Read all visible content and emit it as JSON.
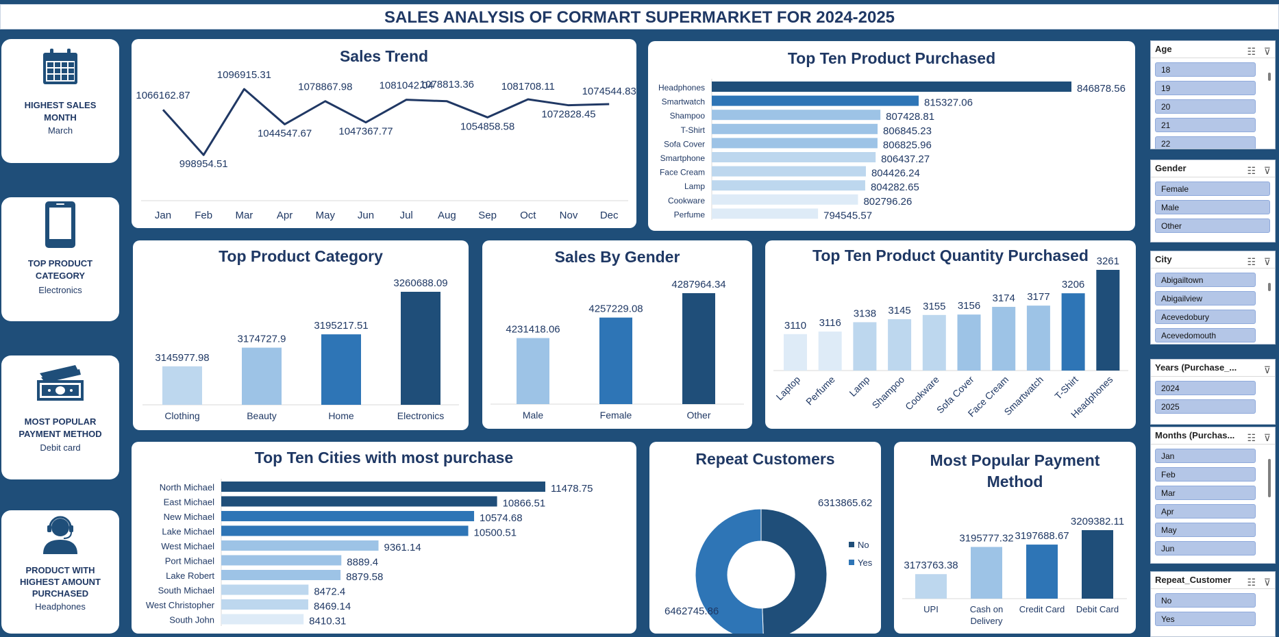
{
  "title": "SALES ANALYSIS OF CORMART SUPERMARKET FOR 2024-2025",
  "colors": {
    "background": "#1f4e79",
    "dark": "#1f4e79",
    "mid": "#2e75b6",
    "light": "#9dc3e6",
    "lighter": "#bdd7ee",
    "lightest": "#deebf7",
    "slicer_item": "#b4c6e7"
  },
  "kpis": [
    {
      "icon": "calendar-icon",
      "label_line1": "HIGHEST SALES",
      "label_line2": "MONTH",
      "value": "March"
    },
    {
      "icon": "smartphone-icon",
      "label_line1": "TOP PRODUCT",
      "label_line2": "CATEGORY",
      "value": "Electronics"
    },
    {
      "icon": "cash-icon",
      "label_line1": "MOST POPULAR",
      "label_line2": "PAYMENT METHOD",
      "value": "Debit card"
    },
    {
      "icon": "support-agent-icon",
      "label_line1": "PRODUCT WITH",
      "label_line2": "HIGHEST AMOUNT",
      "label_line3": "PURCHASED",
      "value": "Headphones"
    }
  ],
  "chart_data": [
    {
      "id": "sales_trend",
      "type": "line",
      "title": "Sales Trend",
      "categories": [
        "Jan",
        "Feb",
        "Mar",
        "Apr",
        "May",
        "Jun",
        "Jul",
        "Aug",
        "Sep",
        "Oct",
        "Nov",
        "Dec"
      ],
      "values": [
        1066162.87,
        998954.51,
        1096915.31,
        1044547.67,
        1078867.98,
        1047367.77,
        1081042.04,
        1078813.36,
        1054858.58,
        1081708.11,
        1072828.45,
        1074544.83
      ],
      "labels": [
        "1066162.87",
        "998954.51",
        "1096915.31",
        "1044547.67",
        "1078867.98",
        "1047367.77",
        "1081042.04",
        "1078813.36",
        "1054858.58",
        "1081708.11",
        "1072828.45",
        "1074544.83"
      ]
    },
    {
      "id": "top_products",
      "type": "bar",
      "orientation": "horizontal",
      "title": "Top Ten Product  Purchased",
      "categories": [
        "Headphones",
        "Smartwatch",
        "Shampoo",
        "T-Shirt",
        "Sofa Cover",
        "Smartphone",
        "Face Cream",
        "Lamp",
        "Cookware",
        "Perfume"
      ],
      "values": [
        846878.56,
        815327.06,
        807428.81,
        806845.23,
        806825.96,
        806437.27,
        804426.24,
        804282.65,
        802796.26,
        794545.57
      ],
      "labels": [
        "846878.56",
        "815327.06",
        "807428.81",
        "806845.23",
        "806825.96",
        "806437.27",
        "804426.24",
        "804282.65",
        "802796.26",
        "794545.57"
      ]
    },
    {
      "id": "top_category",
      "type": "bar",
      "title": "Top Product Category",
      "categories": [
        "Clothing",
        "Beauty",
        "Home",
        "Electronics"
      ],
      "values": [
        3145977.98,
        3174727.9,
        3195217.51,
        3260688.09
      ],
      "labels": [
        "3145977.98",
        "3174727.9",
        "3195217.51",
        "3260688.09"
      ]
    },
    {
      "id": "sales_gender",
      "type": "bar",
      "title": "Sales By Gender",
      "categories": [
        "Male",
        "Female",
        "Other"
      ],
      "values": [
        4231418.06,
        4257229.08,
        4287964.34
      ],
      "labels": [
        "4231418.06",
        "4257229.08",
        "4287964.34"
      ]
    },
    {
      "id": "top_qty",
      "type": "bar",
      "title": "Top Ten Product Quantity Purchased",
      "categories": [
        "Laptop",
        "Perfume",
        "Lamp",
        "Shampoo",
        "Cookware",
        "Sofa Cover",
        "Face Cream",
        "Smartwatch",
        "T-Shirt",
        "Headphones"
      ],
      "values": [
        3110,
        3116,
        3138,
        3145,
        3155,
        3156,
        3174,
        3177,
        3206,
        3261
      ],
      "labels": [
        "3110",
        "3116",
        "3138",
        "3145",
        "3155",
        "3156",
        "3174",
        "3177",
        "3206",
        "3261"
      ]
    },
    {
      "id": "top_cities",
      "type": "bar",
      "orientation": "horizontal",
      "title": "Top Ten Cities with most purchase",
      "categories": [
        "North Michael",
        "East Michael",
        "New Michael",
        "Lake Michael",
        "West Michael",
        "Port Michael",
        "Lake Robert",
        "South Michael",
        "West Christopher",
        "South John"
      ],
      "values": [
        11478.75,
        10866.51,
        10574.68,
        10500.51,
        9361.14,
        8889.4,
        8879.58,
        8472.4,
        8469.14,
        8410.31
      ],
      "labels": [
        "11478.75",
        "10866.51",
        "10574.68",
        "10500.51",
        "9361.14",
        "8889.4",
        "8879.58",
        "8472.4",
        "8469.14",
        "8410.31"
      ]
    },
    {
      "id": "repeat_customers",
      "type": "pie",
      "title": "Repeat Customers",
      "categories": [
        "No",
        "Yes"
      ],
      "values": [
        6313865.62,
        6462745.86
      ],
      "labels": [
        "6313865.62",
        "6462745.86"
      ]
    },
    {
      "id": "payment_method",
      "type": "bar",
      "title_line1": "Most Popular Payment",
      "title_line2": "Method",
      "categories": [
        "UPI",
        "Cash on Delivery",
        "Credit Card",
        "Debit Card"
      ],
      "cat_line1": [
        "UPI",
        "Cash on",
        "Credit Card",
        "Debit Card"
      ],
      "cat_line2": [
        "",
        "Delivery",
        "",
        ""
      ],
      "values": [
        3173763.38,
        3195777.32,
        3197688.67,
        3209382.11
      ],
      "labels": [
        "3173763.38",
        "3195777.32",
        "3197688.67",
        "3209382.11"
      ]
    }
  ],
  "slicers": [
    {
      "title": "Age",
      "items": [
        "18",
        "19",
        "20",
        "21",
        "22"
      ]
    },
    {
      "title": "Gender",
      "items": [
        "Female",
        "Male",
        "Other"
      ]
    },
    {
      "title": "City",
      "items": [
        "Abigailtown",
        "Abigailview",
        "Acevedobury",
        "Acevedomouth"
      ]
    },
    {
      "title": "Years (Purchase_...",
      "items": [
        "2024",
        "2025"
      ]
    },
    {
      "title": "Months (Purchas...",
      "items": [
        "Jan",
        "Feb",
        "Mar",
        "Apr",
        "May",
        "Jun"
      ]
    },
    {
      "title": "Repeat_Customer",
      "items": [
        "No",
        "Yes"
      ]
    }
  ]
}
